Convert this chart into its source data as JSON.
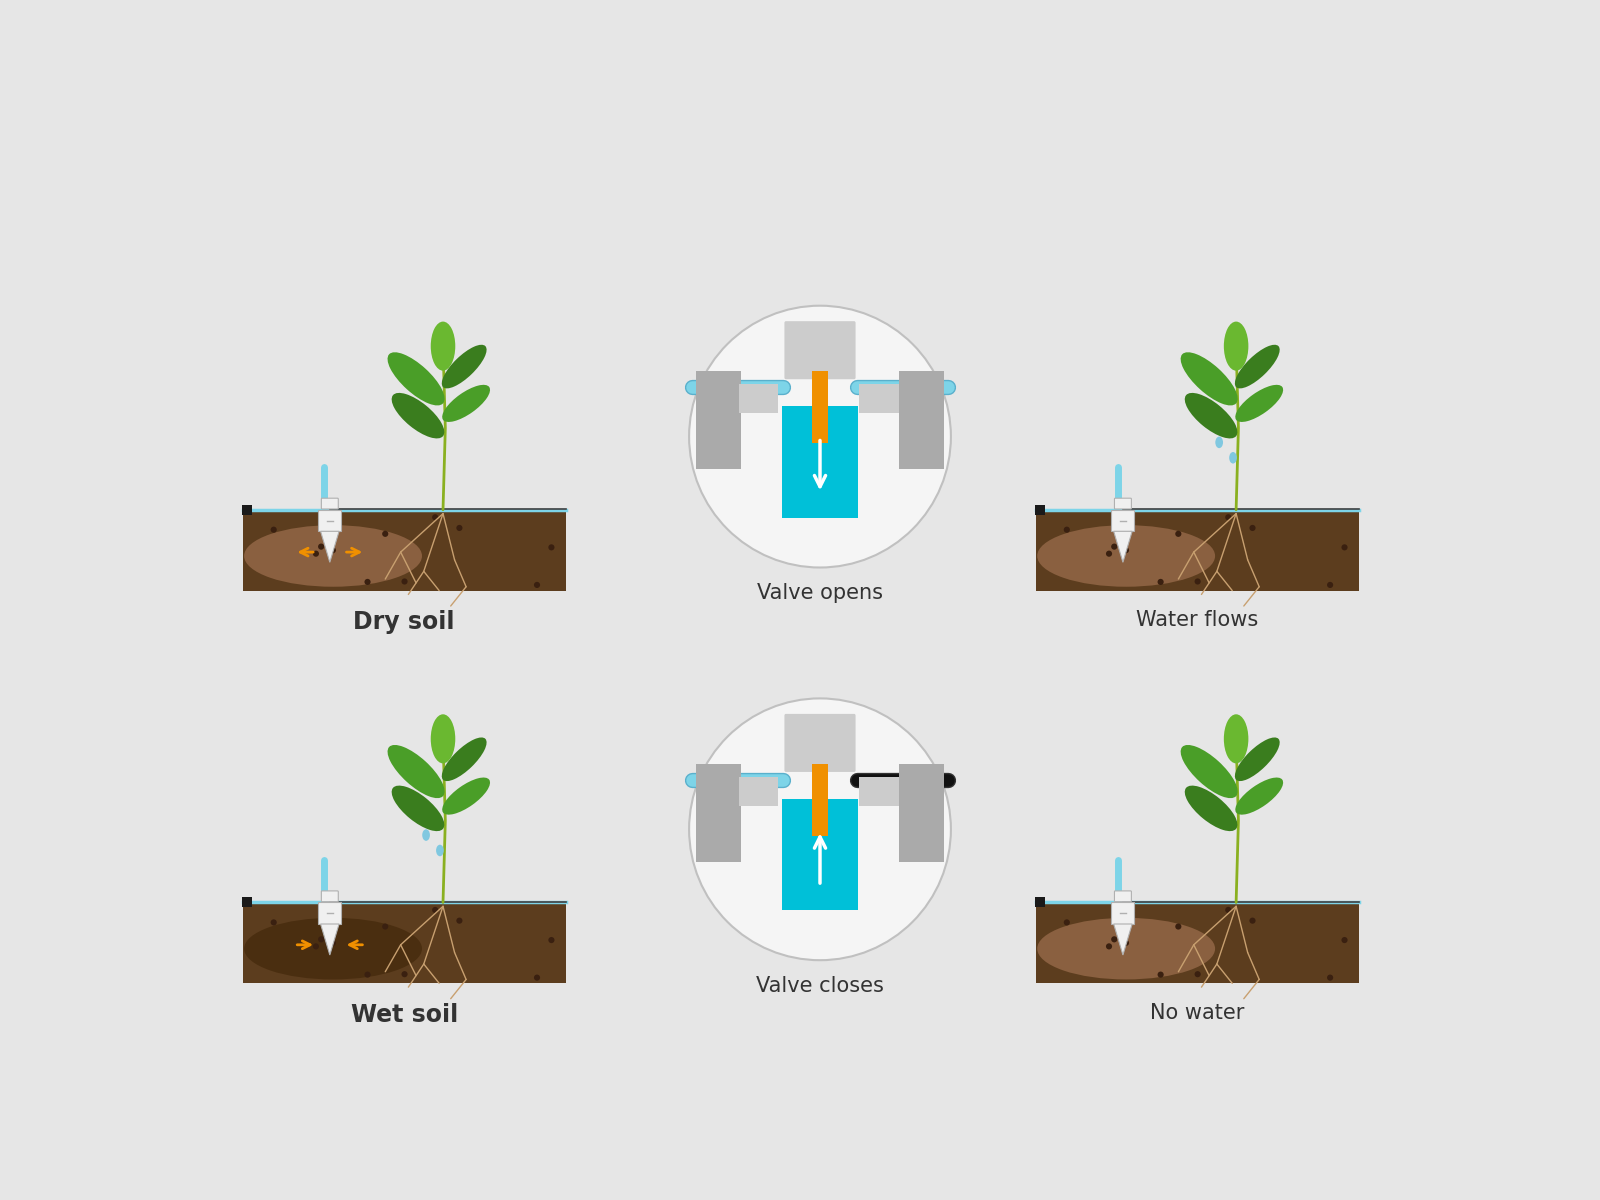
{
  "bg_color": "#e6e6e6",
  "soil_brown": "#5c3d1e",
  "soil_mid": "#7a5230",
  "soil_light_zone": "#8a6040",
  "soil_dark_zone": "#4a2e10",
  "plant_green_dark": "#3a7d1e",
  "plant_green_mid": "#4a9e28",
  "plant_green_light": "#6ab830",
  "plant_yellow_green": "#a0c030",
  "stem_color": "#8ab020",
  "root_color": "#c8a070",
  "sensor_body": "#f0f0f0",
  "sensor_outline": "#b0b0b0",
  "pipe_cyan": "#7dd4e8",
  "pipe_dark_outline": "#5ab0cc",
  "black_sq": "#1a1a1a",
  "valve_gray_dark": "#8a8a8a",
  "valve_gray_mid": "#aaaaaa",
  "valve_gray_light": "#cccccc",
  "valve_cyan": "#00c0d8",
  "valve_orange": "#f09000",
  "arrow_orange": "#f09000",
  "water_drop": "#80c8e0",
  "white": "#ffffff",
  "text_dark": "#222222",
  "text_label": "#333333",
  "circle_edge": "#c0c0c0",
  "labels": {
    "dry_soil": "Dry soil",
    "valve_opens": "Valve opens",
    "water_flows": "Water flows",
    "wet_soil": "Wet soil",
    "valve_closes": "Valve closes",
    "no_water": "No water"
  }
}
